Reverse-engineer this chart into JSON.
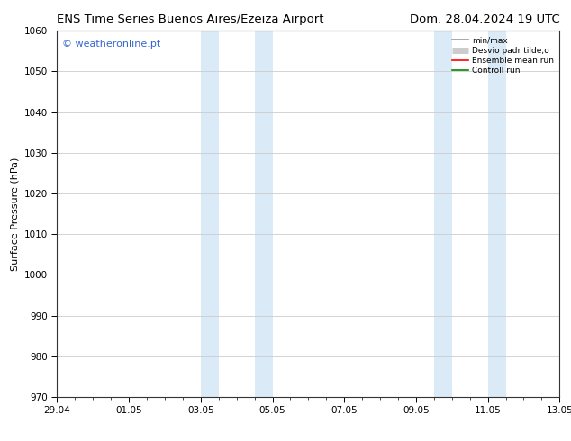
{
  "title_left": "ENS Time Series Buenos Aires/Ezeiza Airport",
  "title_right": "Dom. 28.04.2024 19 UTC",
  "ylabel": "Surface Pressure (hPa)",
  "ylim": [
    970,
    1060
  ],
  "yticks": [
    970,
    980,
    990,
    1000,
    1010,
    1020,
    1030,
    1040,
    1050,
    1060
  ],
  "xlim_start": 0.0,
  "xlim_end": 14.0,
  "xtick_labels": [
    "29.04",
    "01.05",
    "03.05",
    "05.05",
    "07.05",
    "09.05",
    "11.05",
    "13.05"
  ],
  "xtick_positions": [
    0,
    2,
    4,
    6,
    8,
    10,
    12,
    14
  ],
  "shaded_bands": [
    {
      "x_start": 4.0,
      "x_end": 4.5,
      "color": "#daeaf7"
    },
    {
      "x_start": 5.5,
      "x_end": 6.0,
      "color": "#daeaf7"
    },
    {
      "x_start": 10.5,
      "x_end": 11.0,
      "color": "#daeaf7"
    },
    {
      "x_start": 12.0,
      "x_end": 12.5,
      "color": "#daeaf7"
    }
  ],
  "watermark_text": "© weatheronline.pt",
  "watermark_color": "#3366cc",
  "watermark_fontsize": 8,
  "legend_entries": [
    {
      "label": "min/max",
      "color": "#999999",
      "lw": 1.2
    },
    {
      "label": "Desvio padr tilde;o",
      "color": "#cccccc",
      "lw": 5
    },
    {
      "label": "Ensemble mean run",
      "color": "#ff0000",
      "lw": 1.2
    },
    {
      "label": "Controll run",
      "color": "#008800",
      "lw": 1.2
    }
  ],
  "bg_color": "#ffffff",
  "plot_bg_color": "#ffffff",
  "grid_color": "#cccccc",
  "title_fontsize": 9.5,
  "axis_label_fontsize": 8,
  "tick_fontsize": 7.5
}
